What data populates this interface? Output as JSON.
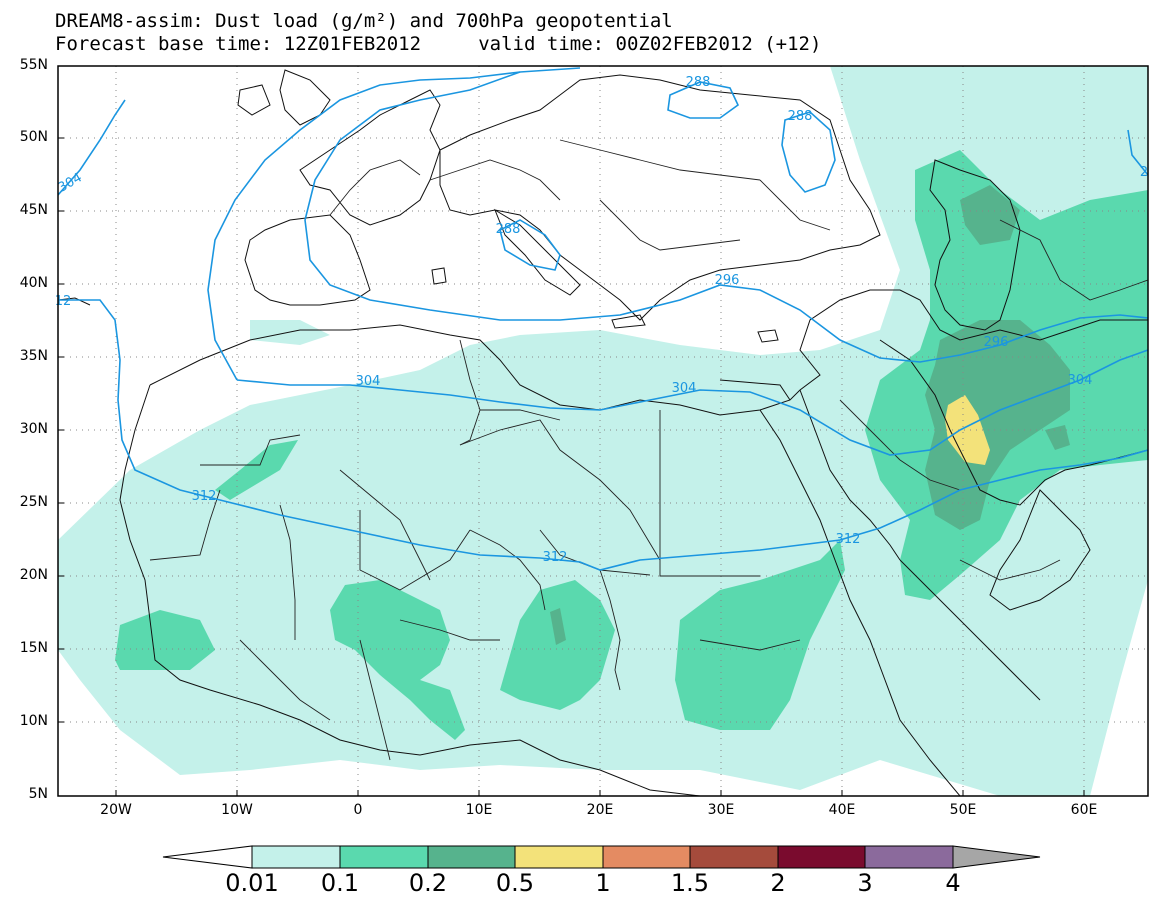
{
  "title": {
    "line1": "DREAM8-assim: Dust load (g/m²) and 700hPa geopotential",
    "line2": "Forecast base time: 12Z01FEB2012     valid time: 00Z02FEB2012 (+12)"
  },
  "lat_labels": [
    "55N",
    "50N",
    "45N",
    "40N",
    "35N",
    "30N",
    "25N",
    "20N",
    "15N",
    "10N",
    "5N"
  ],
  "lon_labels": [
    "20W",
    "10W",
    "0",
    "10E",
    "20E",
    "30E",
    "40E",
    "50E",
    "60E"
  ],
  "contours": {
    "labels": [
      "288",
      "288",
      "288",
      "296",
      "296",
      "304",
      "304",
      "304",
      "304",
      "312",
      "312",
      "312",
      "12",
      "2"
    ]
  },
  "legend": {
    "levels": [
      "0.01",
      "0.1",
      "0.2",
      "0.5",
      "1",
      "1.5",
      "2",
      "3",
      "4"
    ],
    "colors": [
      "#ffffff",
      "#c4f1ea",
      "#5ad9ae",
      "#56b38d",
      "#f3e27a",
      "#e48b62",
      "#a54b3c",
      "#7a0b2e",
      "#8b6a9c",
      "#a6a6a6"
    ]
  },
  "colors": {
    "dust_0": "#c4f1ea",
    "dust_1": "#5ad9ae",
    "dust_2": "#56b38d",
    "dust_3": "#f3e27a",
    "contour": "#1b96e0",
    "frame": "#000000"
  }
}
